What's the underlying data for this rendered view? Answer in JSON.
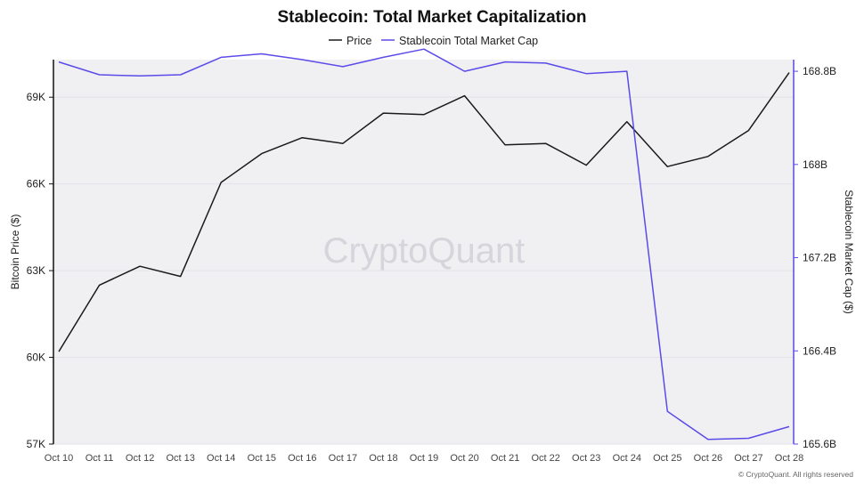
{
  "chart_data": {
    "type": "line",
    "title": "Stablecoin: Total Market Capitalization",
    "categories": [
      "Oct 10",
      "Oct 11",
      "Oct 12",
      "Oct 13",
      "Oct 14",
      "Oct 15",
      "Oct 16",
      "Oct 17",
      "Oct 18",
      "Oct 19",
      "Oct 20",
      "Oct 21",
      "Oct 22",
      "Oct 23",
      "Oct 24",
      "Oct 25",
      "Oct 26",
      "Oct 27",
      "Oct 28"
    ],
    "series": [
      {
        "name": "Price",
        "axis": "left",
        "color": "#1a1a1a",
        "values": [
          60200,
          62500,
          63150,
          62800,
          66050,
          67050,
          67600,
          67400,
          68450,
          68400,
          69050,
          67350,
          67400,
          66650,
          68150,
          66600,
          66950,
          67850,
          69850
        ]
      },
      {
        "name": "Stablecoin Total Market Cap",
        "axis": "right",
        "color": "#5b4be8",
        "values": [
          168.88,
          168.77,
          168.76,
          168.77,
          168.92,
          168.95,
          168.9,
          168.84,
          168.92,
          168.99,
          168.8,
          168.88,
          168.87,
          168.78,
          168.8,
          165.88,
          165.64,
          165.65,
          165.75
        ]
      }
    ],
    "ylabel": "Bitcoin Price ($)",
    "ylabel_right": "Stablecoin Market Cap ($)",
    "ylim": [
      57000,
      70300
    ],
    "ylim_right": [
      165.6,
      168.9
    ],
    "yticks": [
      {
        "value": 57000,
        "label": "57K"
      },
      {
        "value": 60000,
        "label": "60K"
      },
      {
        "value": 63000,
        "label": "63K"
      },
      {
        "value": 66000,
        "label": "66K"
      },
      {
        "value": 69000,
        "label": "69K"
      }
    ],
    "yticks_right": [
      {
        "value": 165.6,
        "label": "165.6B"
      },
      {
        "value": 166.4,
        "label": "166.4B"
      },
      {
        "value": 167.2,
        "label": "167.2B"
      },
      {
        "value": 168.0,
        "label": "168B"
      },
      {
        "value": 168.8,
        "label": "168.8B"
      }
    ],
    "legend_position": "top-center",
    "grid": true,
    "watermark": "CryptoQuant",
    "copyright": "© CryptoQuant. All rights reserved"
  }
}
